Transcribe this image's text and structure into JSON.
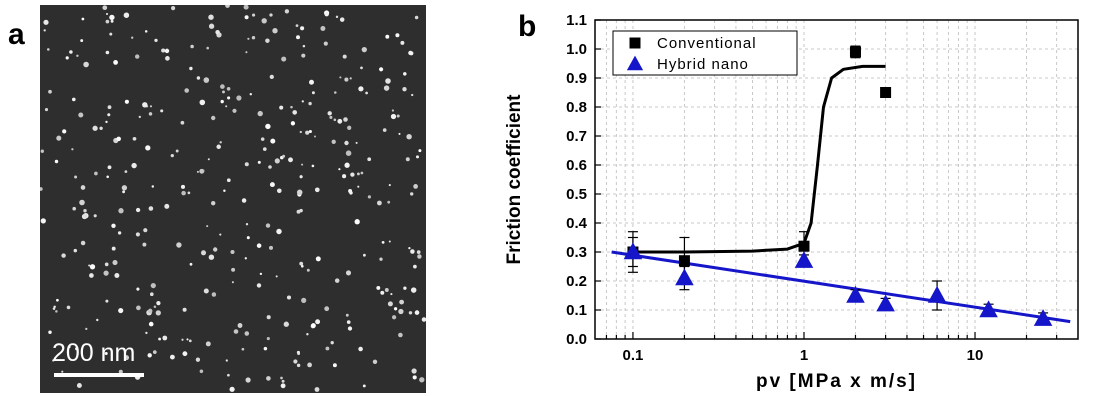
{
  "panels": {
    "a": {
      "letter": "a",
      "scale_bar_label": "200 nm"
    },
    "b": {
      "letter": "b"
    }
  },
  "chart_data": {
    "type": "scatter",
    "xscale": "log",
    "xlabel": "pv [MPa x m/s]",
    "ylabel": "Friction coefficient",
    "xlim": [
      0.06,
      40
    ],
    "ylim": [
      0.0,
      1.1
    ],
    "xticks": [
      0.1,
      1,
      10
    ],
    "xtick_labels": [
      "0.1",
      "1",
      "10"
    ],
    "yticks": [
      0.0,
      0.1,
      0.2,
      0.3,
      0.4,
      0.5,
      0.6,
      0.7,
      0.8,
      0.9,
      1.0,
      1.1
    ],
    "ytick_labels": [
      "0.0",
      "0.1",
      "0.2",
      "0.3",
      "0.4",
      "0.5",
      "0.6",
      "0.7",
      "0.8",
      "0.9",
      "1.0",
      "1.1"
    ],
    "grid": true,
    "legend_position": "top-left",
    "series": [
      {
        "name": "Conventional",
        "marker": "square",
        "color": "#000000",
        "points": [
          {
            "x": 0.1,
            "y": 0.3,
            "err": 0.07
          },
          {
            "x": 0.2,
            "y": 0.27,
            "err": 0.08
          },
          {
            "x": 1.0,
            "y": 0.32,
            "err": 0.05
          },
          {
            "x": 2.0,
            "y": 0.99,
            "err": 0.02
          },
          {
            "x": 3.0,
            "y": 0.85,
            "err": 0.01
          }
        ],
        "fit": {
          "color": "#000000",
          "points": [
            [
              0.1,
              0.3
            ],
            [
              0.2,
              0.3
            ],
            [
              0.5,
              0.303
            ],
            [
              0.8,
              0.31
            ],
            [
              1.0,
              0.33
            ],
            [
              1.1,
              0.4
            ],
            [
              1.2,
              0.6
            ],
            [
              1.3,
              0.8
            ],
            [
              1.45,
              0.9
            ],
            [
              1.7,
              0.93
            ],
            [
              2.2,
              0.94
            ],
            [
              3.0,
              0.94
            ]
          ]
        }
      },
      {
        "name": "Hybrid nano",
        "marker": "triangle",
        "color": "#1515c9",
        "points": [
          {
            "x": 0.1,
            "y": 0.3,
            "err": 0.05
          },
          {
            "x": 0.2,
            "y": 0.21,
            "err": 0.04
          },
          {
            "x": 1.0,
            "y": 0.27,
            "err": 0.02
          },
          {
            "x": 2.0,
            "y": 0.15,
            "err": 0.02
          },
          {
            "x": 3.0,
            "y": 0.12,
            "err": 0.02
          },
          {
            "x": 6.0,
            "y": 0.15,
            "err": 0.05
          },
          {
            "x": 12.0,
            "y": 0.1,
            "err": 0.02
          },
          {
            "x": 25.0,
            "y": 0.07,
            "err": 0.02
          }
        ],
        "fit": {
          "color": "#1515c9",
          "points": [
            [
              0.075,
              0.3
            ],
            [
              36.0,
              0.06
            ]
          ]
        }
      }
    ]
  }
}
